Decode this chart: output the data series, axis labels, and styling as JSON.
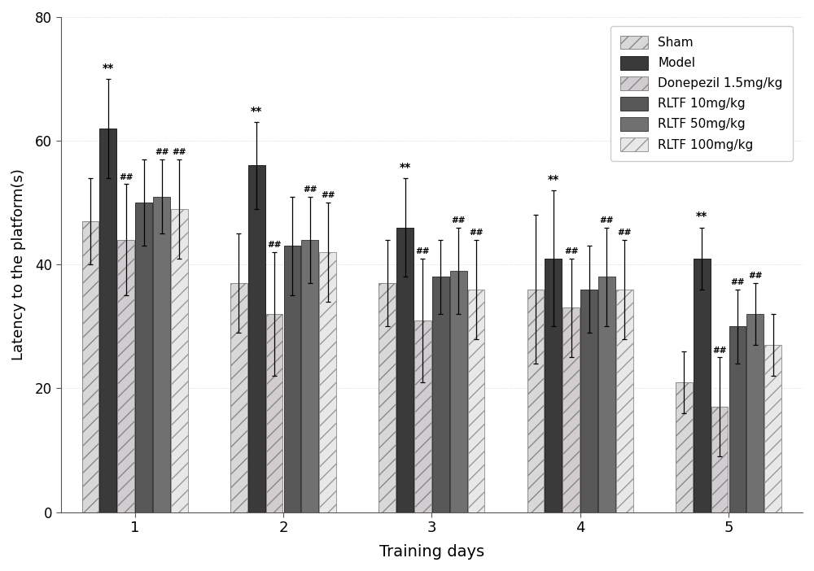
{
  "groups": [
    "1",
    "2",
    "3",
    "4",
    "5"
  ],
  "series_labels": [
    "Sham",
    "Model",
    "Donepezil 1.5mg/kg",
    "RLTF 10mg/kg",
    "RLTF 50mg/kg",
    "RLTF 100mg/kg"
  ],
  "bar_colors": [
    "#d8d8d8",
    "#3a3a3a",
    "#d0ccd0",
    "#585858",
    "#707070",
    "#e8e8e8"
  ],
  "bar_edge_colors": [
    "#888888",
    "#222222",
    "#888888",
    "#333333",
    "#444444",
    "#999999"
  ],
  "hatch_patterns": [
    "//",
    "",
    "//",
    "",
    "",
    "//"
  ],
  "values": [
    [
      47,
      62,
      44,
      50,
      51,
      49
    ],
    [
      37,
      56,
      32,
      43,
      44,
      42
    ],
    [
      37,
      46,
      31,
      38,
      39,
      36
    ],
    [
      36,
      41,
      33,
      36,
      38,
      36
    ],
    [
      21,
      41,
      17,
      30,
      32,
      27
    ]
  ],
  "errors": [
    [
      7,
      8,
      9,
      7,
      6,
      8
    ],
    [
      8,
      7,
      10,
      8,
      7,
      8
    ],
    [
      7,
      8,
      10,
      6,
      7,
      8
    ],
    [
      12,
      11,
      8,
      7,
      8,
      8
    ],
    [
      5,
      5,
      8,
      6,
      5,
      5
    ]
  ],
  "star_series_idx": 1,
  "hash_annotations": {
    "0": [
      2,
      4,
      5
    ],
    "1": [
      2,
      4,
      5
    ],
    "2": [
      2,
      4,
      5
    ],
    "3": [
      2,
      4,
      5
    ],
    "4": [
      2,
      3,
      4
    ]
  },
  "xlabel": "Training days",
  "ylabel": "Latency to the platform(s)",
  "ylim": [
    0,
    80
  ],
  "yticks": [
    0,
    20,
    40,
    60,
    80
  ],
  "bar_width": 0.12,
  "figsize": [
    10.0,
    7.02
  ],
  "dpi": 100
}
